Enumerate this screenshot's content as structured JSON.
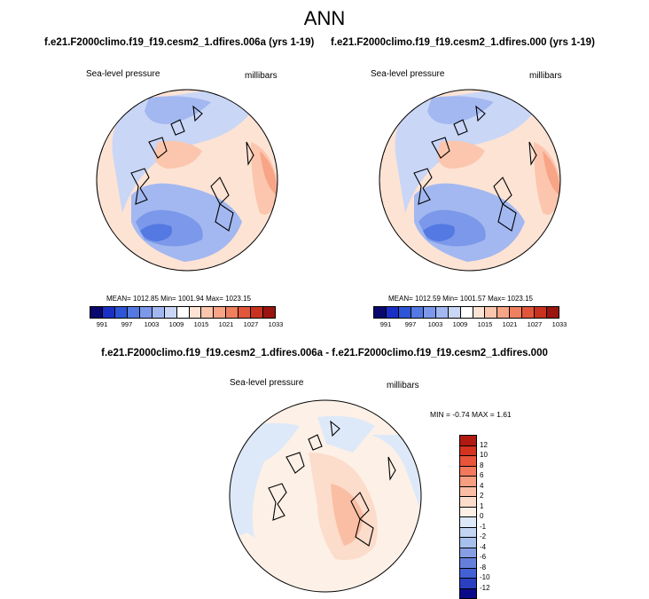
{
  "figure": {
    "title": "ANN",
    "left_case": "f.e21.F2000climo.f19_f19.cesm2_1.dfires.006a (yrs 1-19)",
    "right_case": "f.e21.F2000climo.f19_f19.cesm2_1.dfires.000 (yrs 1-19)",
    "diff_title": "f.e21.F2000climo.f19_f19.cesm2_1.dfires.006a - f.e21.F2000climo.f19_f19.cesm2_1.dfires.000"
  },
  "panels": {
    "left": {
      "variable": "Sea-level pressure",
      "units": "millibars",
      "stats": "MEAN= 1012.85  Min= 1001.94  Max= 1023.15"
    },
    "right": {
      "variable": "Sea-level pressure",
      "units": "millibars",
      "stats": "MEAN= 1012.59  Min= 1001.57  Max= 1023.15"
    },
    "diff": {
      "variable": "Sea-level pressure",
      "units": "millibars",
      "stats": "MIN =  -0.74 MAX =   1.61"
    }
  },
  "colorbars": {
    "abs": {
      "colors": [
        "#08086e",
        "#1a2fc4",
        "#2e55d6",
        "#5479e2",
        "#7b98ea",
        "#a3b8f0",
        "#c9d6f6",
        "#ffffff",
        "#fde3d4",
        "#fbc6ad",
        "#f7a487",
        "#ee7f5f",
        "#e0573b",
        "#c8321e",
        "#9a1410"
      ],
      "tick_labels": [
        "991",
        "997",
        "1003",
        "1009",
        "1015",
        "1021",
        "1027",
        "1033"
      ]
    },
    "diff": {
      "colors": [
        "#b01a10",
        "#d3331f",
        "#e8553a",
        "#f2795d",
        "#f79d80",
        "#fabea4",
        "#fcdccb",
        "#fdf0e6",
        "#dde9f8",
        "#c3d5f3",
        "#a6bfed",
        "#869fe4",
        "#6580db",
        "#4361d4",
        "#2a40c0",
        "#0a0a88"
      ],
      "tick_labels": [
        "12",
        "10",
        "8",
        "6",
        "4",
        "2",
        "1",
        "0",
        "-1",
        "-2",
        "-4",
        "-6",
        "-8",
        "-10",
        "-12"
      ]
    }
  }
}
